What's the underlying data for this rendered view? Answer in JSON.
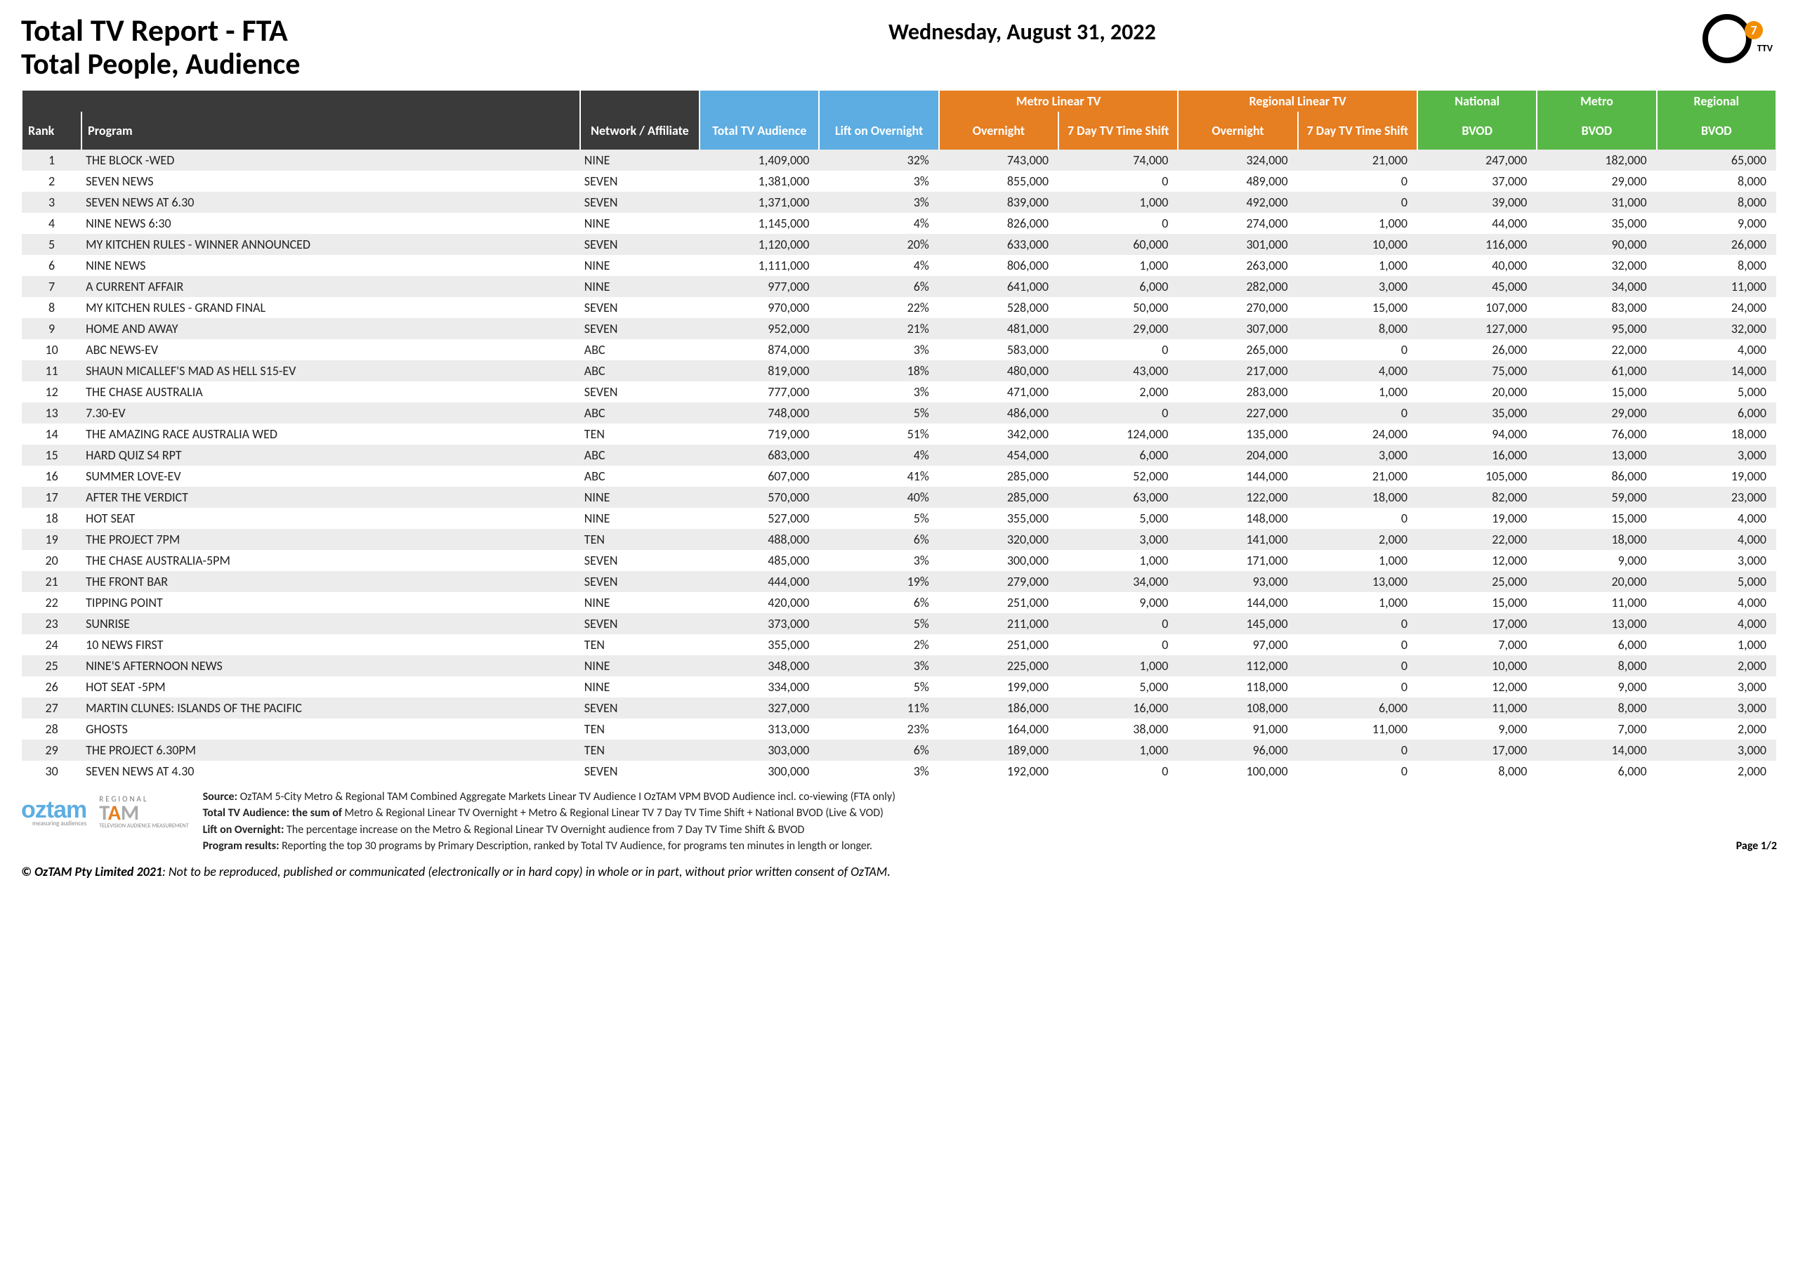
{
  "header": {
    "title": "Total TV Report - FTA",
    "subtitle": "Total People, Audience",
    "date": "Wednesday, August 31, 2022",
    "logo_text": "TTV",
    "logo_digit": "7"
  },
  "table": {
    "group_metro": "Metro Linear TV",
    "group_regional": "Regional Linear TV",
    "group_national": "National",
    "group_metro_bvod": "Metro",
    "group_regional_bvod": "Regional",
    "group_colors": {
      "dark": "#3a3a3a",
      "blue": "#5dade2",
      "orange": "#e67e22",
      "green": "#58b847"
    },
    "columns": {
      "rank": "Rank",
      "program": "Program",
      "network": "Network / Affiliate",
      "total_audience": "Total TV Audience",
      "lift": "Lift on Overnight",
      "metro_on": "Overnight",
      "metro_ts": "7 Day TV Time Shift",
      "reg_on": "Overnight",
      "reg_ts": "7 Day TV Time Shift",
      "nat_bvod": "BVOD",
      "met_bvod": "BVOD",
      "reg_bvod": "BVOD"
    },
    "rows": [
      {
        "rank": "1",
        "program": "THE BLOCK -WED",
        "network": "NINE",
        "total": "1,409,000",
        "lift": "32%",
        "mon": "743,000",
        "mts": "74,000",
        "ron": "324,000",
        "rts": "21,000",
        "nb": "247,000",
        "mb": "182,000",
        "rb": "65,000"
      },
      {
        "rank": "2",
        "program": "SEVEN NEWS",
        "network": "SEVEN",
        "total": "1,381,000",
        "lift": "3%",
        "mon": "855,000",
        "mts": "0",
        "ron": "489,000",
        "rts": "0",
        "nb": "37,000",
        "mb": "29,000",
        "rb": "8,000"
      },
      {
        "rank": "3",
        "program": "SEVEN NEWS AT 6.30",
        "network": "SEVEN",
        "total": "1,371,000",
        "lift": "3%",
        "mon": "839,000",
        "mts": "1,000",
        "ron": "492,000",
        "rts": "0",
        "nb": "39,000",
        "mb": "31,000",
        "rb": "8,000"
      },
      {
        "rank": "4",
        "program": "NINE NEWS 6:30",
        "network": "NINE",
        "total": "1,145,000",
        "lift": "4%",
        "mon": "826,000",
        "mts": "0",
        "ron": "274,000",
        "rts": "1,000",
        "nb": "44,000",
        "mb": "35,000",
        "rb": "9,000"
      },
      {
        "rank": "5",
        "program": "MY KITCHEN RULES - WINNER ANNOUNCED",
        "network": "SEVEN",
        "total": "1,120,000",
        "lift": "20%",
        "mon": "633,000",
        "mts": "60,000",
        "ron": "301,000",
        "rts": "10,000",
        "nb": "116,000",
        "mb": "90,000",
        "rb": "26,000"
      },
      {
        "rank": "6",
        "program": "NINE NEWS",
        "network": "NINE",
        "total": "1,111,000",
        "lift": "4%",
        "mon": "806,000",
        "mts": "1,000",
        "ron": "263,000",
        "rts": "1,000",
        "nb": "40,000",
        "mb": "32,000",
        "rb": "8,000"
      },
      {
        "rank": "7",
        "program": "A CURRENT AFFAIR",
        "network": "NINE",
        "total": "977,000",
        "lift": "6%",
        "mon": "641,000",
        "mts": "6,000",
        "ron": "282,000",
        "rts": "3,000",
        "nb": "45,000",
        "mb": "34,000",
        "rb": "11,000"
      },
      {
        "rank": "8",
        "program": "MY KITCHEN RULES - GRAND FINAL",
        "network": "SEVEN",
        "total": "970,000",
        "lift": "22%",
        "mon": "528,000",
        "mts": "50,000",
        "ron": "270,000",
        "rts": "15,000",
        "nb": "107,000",
        "mb": "83,000",
        "rb": "24,000"
      },
      {
        "rank": "9",
        "program": "HOME AND AWAY",
        "network": "SEVEN",
        "total": "952,000",
        "lift": "21%",
        "mon": "481,000",
        "mts": "29,000",
        "ron": "307,000",
        "rts": "8,000",
        "nb": "127,000",
        "mb": "95,000",
        "rb": "32,000"
      },
      {
        "rank": "10",
        "program": "ABC NEWS-EV",
        "network": "ABC",
        "total": "874,000",
        "lift": "3%",
        "mon": "583,000",
        "mts": "0",
        "ron": "265,000",
        "rts": "0",
        "nb": "26,000",
        "mb": "22,000",
        "rb": "4,000"
      },
      {
        "rank": "11",
        "program": "SHAUN MICALLEF'S MAD AS HELL S15-EV",
        "network": "ABC",
        "total": "819,000",
        "lift": "18%",
        "mon": "480,000",
        "mts": "43,000",
        "ron": "217,000",
        "rts": "4,000",
        "nb": "75,000",
        "mb": "61,000",
        "rb": "14,000"
      },
      {
        "rank": "12",
        "program": "THE CHASE AUSTRALIA",
        "network": "SEVEN",
        "total": "777,000",
        "lift": "3%",
        "mon": "471,000",
        "mts": "2,000",
        "ron": "283,000",
        "rts": "1,000",
        "nb": "20,000",
        "mb": "15,000",
        "rb": "5,000"
      },
      {
        "rank": "13",
        "program": "7.30-EV",
        "network": "ABC",
        "total": "748,000",
        "lift": "5%",
        "mon": "486,000",
        "mts": "0",
        "ron": "227,000",
        "rts": "0",
        "nb": "35,000",
        "mb": "29,000",
        "rb": "6,000"
      },
      {
        "rank": "14",
        "program": "THE AMAZING RACE AUSTRALIA WED",
        "network": "TEN",
        "total": "719,000",
        "lift": "51%",
        "mon": "342,000",
        "mts": "124,000",
        "ron": "135,000",
        "rts": "24,000",
        "nb": "94,000",
        "mb": "76,000",
        "rb": "18,000"
      },
      {
        "rank": "15",
        "program": "HARD QUIZ S4 RPT",
        "network": "ABC",
        "total": "683,000",
        "lift": "4%",
        "mon": "454,000",
        "mts": "6,000",
        "ron": "204,000",
        "rts": "3,000",
        "nb": "16,000",
        "mb": "13,000",
        "rb": "3,000"
      },
      {
        "rank": "16",
        "program": "SUMMER LOVE-EV",
        "network": "ABC",
        "total": "607,000",
        "lift": "41%",
        "mon": "285,000",
        "mts": "52,000",
        "ron": "144,000",
        "rts": "21,000",
        "nb": "105,000",
        "mb": "86,000",
        "rb": "19,000"
      },
      {
        "rank": "17",
        "program": "AFTER THE VERDICT",
        "network": "NINE",
        "total": "570,000",
        "lift": "40%",
        "mon": "285,000",
        "mts": "63,000",
        "ron": "122,000",
        "rts": "18,000",
        "nb": "82,000",
        "mb": "59,000",
        "rb": "23,000"
      },
      {
        "rank": "18",
        "program": "HOT SEAT",
        "network": "NINE",
        "total": "527,000",
        "lift": "5%",
        "mon": "355,000",
        "mts": "5,000",
        "ron": "148,000",
        "rts": "0",
        "nb": "19,000",
        "mb": "15,000",
        "rb": "4,000"
      },
      {
        "rank": "19",
        "program": "THE PROJECT 7PM",
        "network": "TEN",
        "total": "488,000",
        "lift": "6%",
        "mon": "320,000",
        "mts": "3,000",
        "ron": "141,000",
        "rts": "2,000",
        "nb": "22,000",
        "mb": "18,000",
        "rb": "4,000"
      },
      {
        "rank": "20",
        "program": "THE CHASE AUSTRALIA-5PM",
        "network": "SEVEN",
        "total": "485,000",
        "lift": "3%",
        "mon": "300,000",
        "mts": "1,000",
        "ron": "171,000",
        "rts": "1,000",
        "nb": "12,000",
        "mb": "9,000",
        "rb": "3,000"
      },
      {
        "rank": "21",
        "program": "THE FRONT BAR",
        "network": "SEVEN",
        "total": "444,000",
        "lift": "19%",
        "mon": "279,000",
        "mts": "34,000",
        "ron": "93,000",
        "rts": "13,000",
        "nb": "25,000",
        "mb": "20,000",
        "rb": "5,000"
      },
      {
        "rank": "22",
        "program": "TIPPING POINT",
        "network": "NINE",
        "total": "420,000",
        "lift": "6%",
        "mon": "251,000",
        "mts": "9,000",
        "ron": "144,000",
        "rts": "1,000",
        "nb": "15,000",
        "mb": "11,000",
        "rb": "4,000"
      },
      {
        "rank": "23",
        "program": "SUNRISE",
        "network": "SEVEN",
        "total": "373,000",
        "lift": "5%",
        "mon": "211,000",
        "mts": "0",
        "ron": "145,000",
        "rts": "0",
        "nb": "17,000",
        "mb": "13,000",
        "rb": "4,000"
      },
      {
        "rank": "24",
        "program": "10 NEWS FIRST",
        "network": "TEN",
        "total": "355,000",
        "lift": "2%",
        "mon": "251,000",
        "mts": "0",
        "ron": "97,000",
        "rts": "0",
        "nb": "7,000",
        "mb": "6,000",
        "rb": "1,000"
      },
      {
        "rank": "25",
        "program": "NINE'S AFTERNOON NEWS",
        "network": "NINE",
        "total": "348,000",
        "lift": "3%",
        "mon": "225,000",
        "mts": "1,000",
        "ron": "112,000",
        "rts": "0",
        "nb": "10,000",
        "mb": "8,000",
        "rb": "2,000"
      },
      {
        "rank": "26",
        "program": "HOT SEAT -5PM",
        "network": "NINE",
        "total": "334,000",
        "lift": "5%",
        "mon": "199,000",
        "mts": "5,000",
        "ron": "118,000",
        "rts": "0",
        "nb": "12,000",
        "mb": "9,000",
        "rb": "3,000"
      },
      {
        "rank": "27",
        "program": "MARTIN CLUNES: ISLANDS OF THE PACIFIC",
        "network": "SEVEN",
        "total": "327,000",
        "lift": "11%",
        "mon": "186,000",
        "mts": "16,000",
        "ron": "108,000",
        "rts": "6,000",
        "nb": "11,000",
        "mb": "8,000",
        "rb": "3,000"
      },
      {
        "rank": "28",
        "program": "GHOSTS",
        "network": "TEN",
        "total": "313,000",
        "lift": "23%",
        "mon": "164,000",
        "mts": "38,000",
        "ron": "91,000",
        "rts": "11,000",
        "nb": "9,000",
        "mb": "7,000",
        "rb": "2,000"
      },
      {
        "rank": "29",
        "program": "THE PROJECT 6.30PM",
        "network": "TEN",
        "total": "303,000",
        "lift": "6%",
        "mon": "189,000",
        "mts": "1,000",
        "ron": "96,000",
        "rts": "0",
        "nb": "17,000",
        "mb": "14,000",
        "rb": "3,000"
      },
      {
        "rank": "30",
        "program": "SEVEN NEWS AT 4.30",
        "network": "SEVEN",
        "total": "300,000",
        "lift": "3%",
        "mon": "192,000",
        "mts": "0",
        "ron": "100,000",
        "rts": "0",
        "nb": "8,000",
        "mb": "6,000",
        "rb": "2,000"
      }
    ]
  },
  "footer": {
    "source_label": "Source:",
    "source_text": " OzTAM 5-City Metro & Regional TAM Combined Aggregate Markets Linear TV Audience I  OzTAM VPM BVOD Audience incl. co-viewing (FTA only)",
    "total_label": "Total TV Audience: the sum of",
    "total_text": " Metro & Regional Linear TV Overnight + Metro & Regional Linear TV 7 Day TV Time Shift + National BVOD (Live  & VOD)",
    "lift_label": "Lift on Overnight:",
    "lift_text": " The percentage increase on the Metro & Regional Linear TV Overnight audience from 7 Day TV Time Shift & BVOD",
    "prog_label": "Program results:",
    "prog_text": " Reporting the top 30 programs by Primary Description, ranked by Total TV Audience, for programs  ten minutes in length or longer.",
    "page": "Page 1/2",
    "copyright_bold": "© OzTAM Pty Limited 2021",
    "copyright_rest": ": Not to be reproduced, published or communicated (electronically or in hard copy) in whole or in part, without prior written consent of OzTAM.",
    "oztam": "oztam",
    "oztam_sub": "measuring audiences",
    "regional": "REGIONAL",
    "tam_sub": "TELEVISION AUDIENCE MEASUREMENT"
  }
}
